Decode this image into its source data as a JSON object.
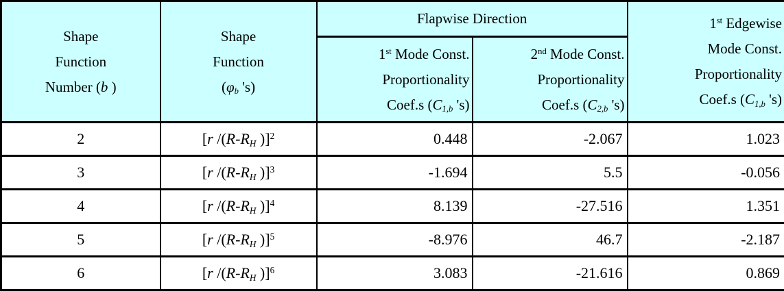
{
  "colors": {
    "header_bg": "#CCFFFF",
    "border": "#000000",
    "background": "#FFFFFF"
  },
  "table": {
    "header": {
      "shape_function_number": [
        [
          {
            "t": "Shape"
          }
        ],
        [
          {
            "t": "Function"
          }
        ],
        [
          {
            "t": "Number ("
          },
          {
            "t": "b",
            "s": "i"
          },
          {
            "t": " )"
          }
        ]
      ],
      "shape_function": [
        [
          {
            "t": "Shape"
          }
        ],
        [
          {
            "t": "Function"
          }
        ],
        [
          {
            "t": "("
          },
          {
            "t": "φ",
            "s": "i"
          },
          {
            "t": "b",
            "s": "subi"
          },
          {
            "t": " 's)"
          }
        ]
      ],
      "flapwise_direction": "Flapwise Direction",
      "flapwise_mode1": [
        [
          {
            "t": "1"
          },
          {
            "t": "st",
            "s": "sup"
          },
          {
            "t": " Mode Const."
          }
        ],
        [
          {
            "t": "Proportionality"
          }
        ],
        [
          {
            "t": "Coef.s ("
          },
          {
            "t": "C",
            "s": "i"
          },
          {
            "t": "1,b",
            "s": "subi"
          },
          {
            "t": " 's)"
          }
        ]
      ],
      "flapwise_mode2": [
        [
          {
            "t": "2"
          },
          {
            "t": "nd",
            "s": "sup"
          },
          {
            "t": " Mode Const."
          }
        ],
        [
          {
            "t": "Proportionality"
          }
        ],
        [
          {
            "t": "Coef.s ("
          },
          {
            "t": "C",
            "s": "i"
          },
          {
            "t": "2,b",
            "s": "subi"
          },
          {
            "t": " 's)"
          }
        ]
      ],
      "edgewise_mode1": [
        [
          {
            "t": "1"
          },
          {
            "t": "st",
            "s": "sup"
          },
          {
            "t": " Edgewise"
          }
        ],
        [
          {
            "t": "Mode Const."
          }
        ],
        [
          {
            "t": "Proportionality"
          }
        ],
        [
          {
            "t": "Coef.s ("
          },
          {
            "t": "C",
            "s": "i"
          },
          {
            "t": "1,b",
            "s": "subi"
          },
          {
            "t": " 's)"
          }
        ]
      ]
    },
    "rows": [
      {
        "number": "2",
        "formula": [
          {
            "t": "["
          },
          {
            "t": "r",
            "s": "i"
          },
          {
            "t": " /("
          },
          {
            "t": "R",
            "s": "i"
          },
          {
            "t": "-"
          },
          {
            "t": "R",
            "s": "i"
          },
          {
            "t": "H",
            "s": "subi"
          },
          {
            "t": " )]"
          },
          {
            "t": "2",
            "s": "sup"
          }
        ],
        "values": [
          "0.448",
          "-2.067",
          "1.023"
        ]
      },
      {
        "number": "3",
        "formula": [
          {
            "t": "["
          },
          {
            "t": "r",
            "s": "i"
          },
          {
            "t": " /("
          },
          {
            "t": "R",
            "s": "i"
          },
          {
            "t": "-"
          },
          {
            "t": "R",
            "s": "i"
          },
          {
            "t": "H",
            "s": "subi"
          },
          {
            "t": " )]"
          },
          {
            "t": "3",
            "s": "sup"
          }
        ],
        "values": [
          "-1.694",
          "5.5",
          "-0.056"
        ]
      },
      {
        "number": "4",
        "formula": [
          {
            "t": "["
          },
          {
            "t": "r",
            "s": "i"
          },
          {
            "t": " /("
          },
          {
            "t": "R",
            "s": "i"
          },
          {
            "t": "-"
          },
          {
            "t": "R",
            "s": "i"
          },
          {
            "t": "H",
            "s": "subi"
          },
          {
            "t": " )]"
          },
          {
            "t": "4",
            "s": "sup"
          }
        ],
        "values": [
          "8.139",
          "-27.516",
          "1.351"
        ]
      },
      {
        "number": "5",
        "formula": [
          {
            "t": "["
          },
          {
            "t": "r",
            "s": "i"
          },
          {
            "t": " /("
          },
          {
            "t": "R",
            "s": "i"
          },
          {
            "t": "-"
          },
          {
            "t": "R",
            "s": "i"
          },
          {
            "t": "H",
            "s": "subi"
          },
          {
            "t": " )]"
          },
          {
            "t": "5",
            "s": "sup"
          }
        ],
        "values": [
          "-8.976",
          "46.7",
          "-2.187"
        ]
      },
      {
        "number": "6",
        "formula": [
          {
            "t": "["
          },
          {
            "t": "r",
            "s": "i"
          },
          {
            "t": " /("
          },
          {
            "t": "R",
            "s": "i"
          },
          {
            "t": "-"
          },
          {
            "t": "R",
            "s": "i"
          },
          {
            "t": "H",
            "s": "subi"
          },
          {
            "t": " )]"
          },
          {
            "t": "6",
            "s": "sup"
          }
        ],
        "values": [
          "3.083",
          "-21.616",
          "0.869"
        ]
      }
    ]
  }
}
